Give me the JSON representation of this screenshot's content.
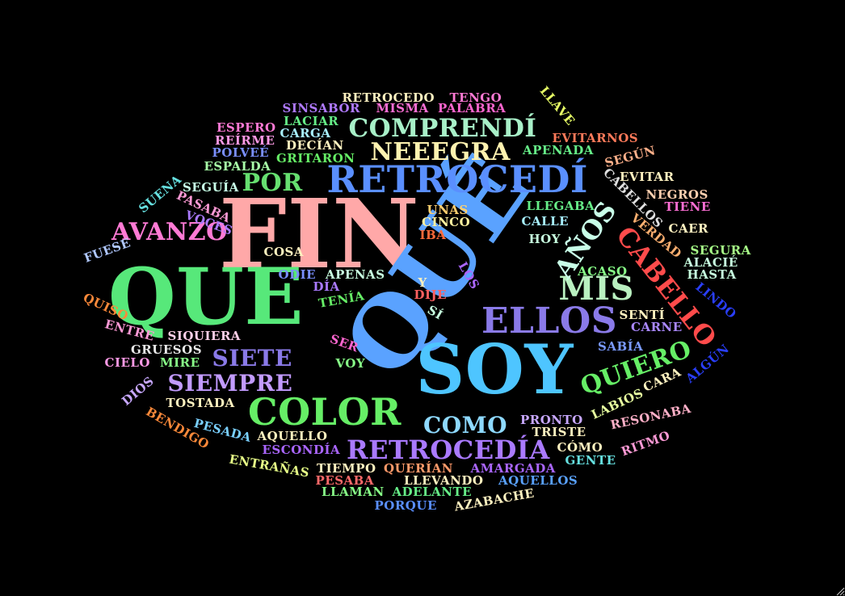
{
  "title": "",
  "words": [
    {
      "text": "FIN",
      "color": "#ffa8a8"
    },
    {
      "text": "QUÉ",
      "color": "#5aa2ff"
    },
    {
      "text": "QUE",
      "color": "#57e87a"
    },
    {
      "text": "SOY",
      "color": "#4ec5ff"
    },
    {
      "text": "RETROCEDÍ",
      "color": "#5a8fff"
    },
    {
      "text": "ELLOS",
      "color": "#8a7ae8"
    },
    {
      "text": "MIS",
      "color": "#b9f0c0"
    },
    {
      "text": "CABELLO",
      "color": "#ff4b4b"
    },
    {
      "text": "COLOR",
      "color": "#66ee66"
    },
    {
      "text": "RETROCEDÍA",
      "color": "#aa7aff"
    },
    {
      "text": "COMPRENDÍ",
      "color": "#a8f0c8"
    },
    {
      "text": "NEEEGRA",
      "color": "#fff2b0"
    },
    {
      "text": "POR",
      "color": "#66e070"
    },
    {
      "text": "AVANZO",
      "color": "#ff7ad5"
    },
    {
      "text": "AÑOS",
      "color": "#c8ffe8"
    },
    {
      "text": "QUIERO",
      "color": "#66ee66"
    },
    {
      "text": "SIETE",
      "color": "#8a7ae8"
    },
    {
      "text": "SIEMPRE",
      "color": "#c29bff"
    },
    {
      "text": "COMO",
      "color": "#8ed9ff"
    },
    {
      "text": "RETROCEDO",
      "color": "#fff2c0"
    },
    {
      "text": "TENGO",
      "color": "#ff7ad5"
    },
    {
      "text": "SINSABOR",
      "color": "#b07aff"
    },
    {
      "text": "MISMA",
      "color": "#ff6fd6"
    },
    {
      "text": "PALABRA",
      "color": "#ff66d0"
    },
    {
      "text": "LLAVE",
      "color": "#e8ff66"
    },
    {
      "text": "LACIAR",
      "color": "#66ee88"
    },
    {
      "text": "ESPERO",
      "color": "#ff7ad5"
    },
    {
      "text": "CARGA",
      "color": "#a8f0ff"
    },
    {
      "text": "REÍRME",
      "color": "#ff9ae6"
    },
    {
      "text": "DECÍAN",
      "color": "#fff2c0"
    },
    {
      "text": "POLVEÉ",
      "color": "#7a8fff"
    },
    {
      "text": "GRITARON",
      "color": "#66ee66"
    },
    {
      "text": "ESPALDA",
      "color": "#a8ffa8"
    },
    {
      "text": "EVITARNOS",
      "color": "#ff7a5a"
    },
    {
      "text": "APENADA",
      "color": "#66ee88"
    },
    {
      "text": "SEGÚN",
      "color": "#ffb08a"
    },
    {
      "text": "EVITAR",
      "color": "#fff2c0"
    },
    {
      "text": "CABELLOS",
      "color": "#e0e0e0"
    },
    {
      "text": "NEGROS",
      "color": "#ffd0b0"
    },
    {
      "text": "TIENE",
      "color": "#ff6fd6"
    },
    {
      "text": "CAER",
      "color": "#fff2c0"
    },
    {
      "text": "VERDAD",
      "color": "#ffb070"
    },
    {
      "text": "SEGURA",
      "color": "#a8ff88"
    },
    {
      "text": "ALACIÉ",
      "color": "#c8ffe0"
    },
    {
      "text": "HASTA",
      "color": "#c8ffe0"
    },
    {
      "text": "LINDO",
      "color": "#2a3fff"
    },
    {
      "text": "SUENA",
      "color": "#66e0e0"
    },
    {
      "text": "SEGUÍA",
      "color": "#c8ffe8"
    },
    {
      "text": "PASABA",
      "color": "#ff9ad6"
    },
    {
      "text": "VOCES",
      "color": "#aa7aff"
    },
    {
      "text": "FUESE",
      "color": "#b0c8ff"
    },
    {
      "text": "COSA",
      "color": "#fff2c0"
    },
    {
      "text": "UNAS",
      "color": "#ffd070"
    },
    {
      "text": "CINCO",
      "color": "#fff2a0"
    },
    {
      "text": "IBA",
      "color": "#ff6a3a"
    },
    {
      "text": "LLEGABA",
      "color": "#66ee88"
    },
    {
      "text": "CALLE",
      "color": "#a8f0ff"
    },
    {
      "text": "HOY",
      "color": "#c8ffe0"
    },
    {
      "text": "ACASO",
      "color": "#88ff88"
    },
    {
      "text": "ODIE",
      "color": "#7a8fff"
    },
    {
      "text": "APENAS",
      "color": "#c8ffe0"
    },
    {
      "text": "DÍA",
      "color": "#aa7aff"
    },
    {
      "text": "TENÍA",
      "color": "#66ee66"
    },
    {
      "text": "Y",
      "color": "#fff2c0"
    },
    {
      "text": "DIJE",
      "color": "#ff6060"
    },
    {
      "text": "SÍ",
      "color": "#c8ffe0"
    },
    {
      "text": "LOS",
      "color": "#aa66ff"
    },
    {
      "text": "SENTÍ",
      "color": "#fff2c0"
    },
    {
      "text": "CARNE",
      "color": "#aa88ff"
    },
    {
      "text": "QUISO",
      "color": "#ff8a3a"
    },
    {
      "text": "ENTRE",
      "color": "#ff9ad6"
    },
    {
      "text": "SIQUIERA",
      "color": "#ffd0e8"
    },
    {
      "text": "SER",
      "color": "#ff66d0"
    },
    {
      "text": "VOY",
      "color": "#88ff88"
    },
    {
      "text": "GRUESOS",
      "color": "#e8e8e8"
    },
    {
      "text": "CIELO",
      "color": "#ff9ae6"
    },
    {
      "text": "MIRE",
      "color": "#88ff88"
    },
    {
      "text": "SABÍA",
      "color": "#7a9aff"
    },
    {
      "text": "ALGÚN",
      "color": "#2a3fff"
    },
    {
      "text": "DIOS",
      "color": "#c8a8ff"
    },
    {
      "text": "TOSTADA",
      "color": "#fff2c0"
    },
    {
      "text": "CARA",
      "color": "#fff2c0"
    },
    {
      "text": "LABIOS",
      "color": "#e8ffa0"
    },
    {
      "text": "BENDIGO",
      "color": "#ff8a3a"
    },
    {
      "text": "PESADA",
      "color": "#7ad0ff"
    },
    {
      "text": "AQUELLO",
      "color": "#fff2c0"
    },
    {
      "text": "PRONTO",
      "color": "#c8a8ff"
    },
    {
      "text": "TRISTE",
      "color": "#fff2c0"
    },
    {
      "text": "RESONABA",
      "color": "#ffb0c8"
    },
    {
      "text": "RITMO",
      "color": "#ff9ad6"
    },
    {
      "text": "ESCONDÍA",
      "color": "#aa66ff"
    },
    {
      "text": "CÓMO",
      "color": "#fff2c0"
    },
    {
      "text": "GENTE",
      "color": "#66e0e0"
    },
    {
      "text": "ENTRAÑAS",
      "color": "#e8ff88"
    },
    {
      "text": "TIEMPO",
      "color": "#fff2c0"
    },
    {
      "text": "QUERÍAN",
      "color": "#ff9a6a"
    },
    {
      "text": "AMARGADA",
      "color": "#aa66ff"
    },
    {
      "text": "PESABA",
      "color": "#ff6a6a"
    },
    {
      "text": "LLEVANDO",
      "color": "#fff2c0"
    },
    {
      "text": "AQUELLOS",
      "color": "#5aa2ff"
    },
    {
      "text": "LLAMAN",
      "color": "#88ff88"
    },
    {
      "text": "ADELANTE",
      "color": "#66ee88"
    },
    {
      "text": "AZABACHE",
      "color": "#fff2c0"
    },
    {
      "text": "PORQUE",
      "color": "#5a8fff"
    }
  ]
}
